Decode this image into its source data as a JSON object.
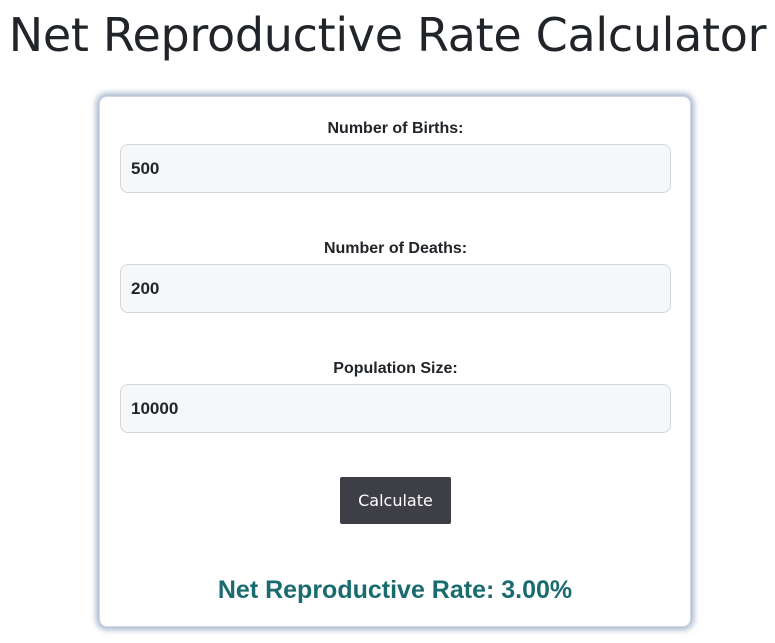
{
  "page": {
    "title": "Net Reproductive Rate Calculator"
  },
  "form": {
    "births": {
      "label": "Number of Births:",
      "value": "500"
    },
    "deaths": {
      "label": "Number of Deaths:",
      "value": "200"
    },
    "population": {
      "label": "Population Size:",
      "value": "10000"
    },
    "calculate_label": "Calculate"
  },
  "result": {
    "text": "Net Reproductive Rate: 3.00%"
  },
  "colors": {
    "button_bg": "#3e3e46",
    "result_text": "#1a6b6f",
    "card_glow": "#6080a8",
    "input_bg": "#f6f7f9"
  }
}
